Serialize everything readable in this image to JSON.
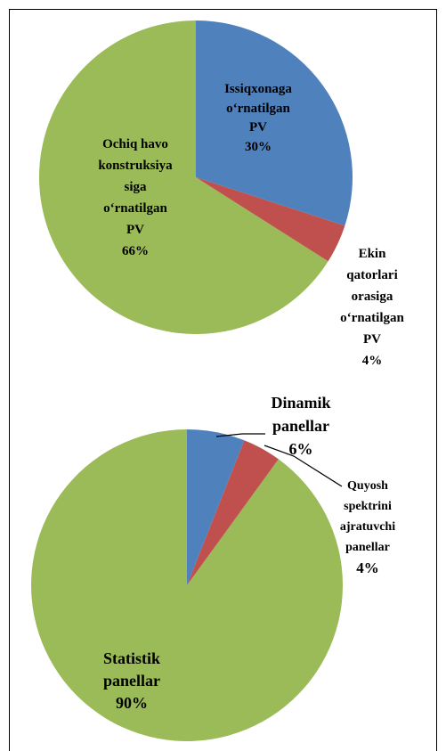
{
  "chart_data": [
    {
      "type": "pie",
      "categories": [
        "Issiqxonaga\no‘rnatilgan\nPV",
        "Ekin\nqatorlari\norasiga\no‘rnatilgan\nPV",
        "Ochiq havo\nkonstruksiya\nsiga\no‘rnatilgan\nPV"
      ],
      "values": [
        30,
        4,
        66
      ],
      "value_labels": [
        "30%",
        "4%",
        "66%"
      ],
      "colors": [
        "#4f81bd",
        "#c0504d",
        "#9bbb59"
      ]
    },
    {
      "type": "pie",
      "categories": [
        "Dinamik\npanellar",
        "Quyosh\nspektrini\najratuvchi\npanellar",
        "Statistik\npanellar"
      ],
      "values": [
        6,
        4,
        90
      ],
      "value_labels": [
        "6%",
        "4%",
        "90%"
      ],
      "colors": [
        "#4f81bd",
        "#c0504d",
        "#9bbb59"
      ]
    }
  ]
}
